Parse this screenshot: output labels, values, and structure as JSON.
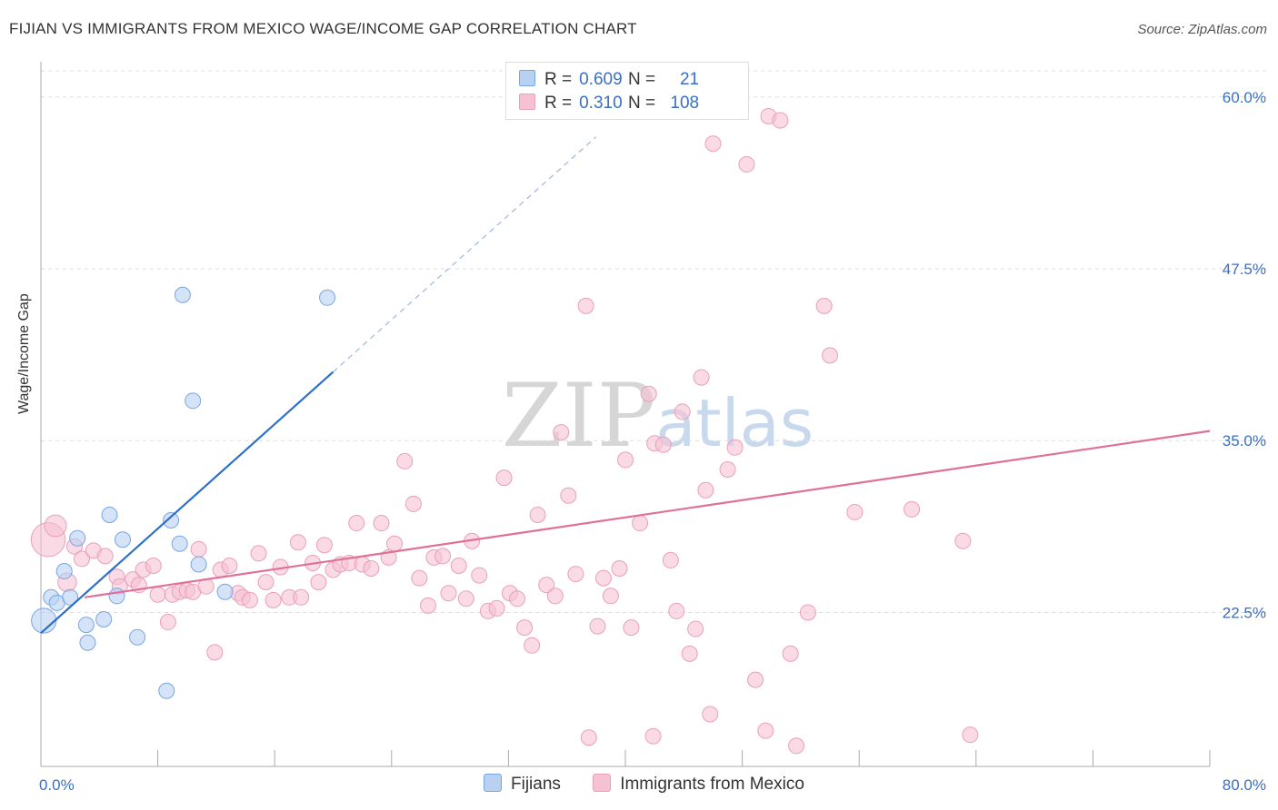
{
  "header": {
    "title": "FIJIAN VS IMMIGRANTS FROM MEXICO WAGE/INCOME GAP CORRELATION CHART",
    "source": "Source: ZipAtlas.com"
  },
  "watermark": {
    "zip": "ZIP",
    "atlas": "atlas"
  },
  "legend": {
    "rows": [
      {
        "r_label": "R =",
        "r_value": "0.609",
        "n_label": "N =",
        "n_value": "21"
      },
      {
        "r_label": "R =",
        "r_value": "0.310",
        "n_label": "N =",
        "n_value": "108"
      }
    ],
    "items": [
      "Fijians",
      "Immigrants from Mexico"
    ]
  },
  "colors": {
    "fijian_fill": "#b8d1f3",
    "fijian_stroke": "#7aa6df",
    "fijian_line": "#2b6fcc",
    "mexico_fill": "#f6c2d3",
    "mexico_stroke": "#e9a0b9",
    "mexico_line": "#e0709a",
    "grid": "#dddddd",
    "tick_label": "#3a6fc4"
  },
  "chart_data": {
    "type": "scatter",
    "title": "FIJIAN VS IMMIGRANTS FROM MEXICO WAGE/INCOME GAP CORRELATION CHART",
    "xlabel": "",
    "ylabel": "Wage/Income Gap",
    "xlim": [
      0,
      80
    ],
    "ylim": [
      11.3,
      61.9
    ],
    "x_tick_labels": [
      "0.0%",
      "80.0%"
    ],
    "y_ticks": [
      22.5,
      35.0,
      47.5,
      60.0
    ],
    "y_tick_labels": [
      "22.5%",
      "35.0%",
      "47.5%",
      "60.0%"
    ],
    "series": [
      {
        "name": "Fijians",
        "R": 0.609,
        "N": 21,
        "trend": {
          "x0": 0.0,
          "y0": 21.0,
          "x1": 20.0,
          "y1": 40.0,
          "dash_x1": 38.0,
          "dash_y1": 57.1
        },
        "points": [
          [
            0.2,
            21.9,
            16
          ],
          [
            0.7,
            23.6,
            10
          ],
          [
            1.1,
            23.2,
            10
          ],
          [
            1.6,
            25.5,
            10
          ],
          [
            2.5,
            27.9,
            10
          ],
          [
            2.0,
            23.6,
            10
          ],
          [
            3.1,
            21.6,
            10
          ],
          [
            3.2,
            20.3,
            10
          ],
          [
            4.3,
            22.0,
            10
          ],
          [
            4.7,
            29.6,
            10
          ],
          [
            5.2,
            23.7,
            10
          ],
          [
            5.6,
            27.8,
            10
          ],
          [
            6.6,
            20.7,
            10
          ],
          [
            8.6,
            16.8,
            10
          ],
          [
            8.9,
            29.2,
            10
          ],
          [
            9.5,
            27.5,
            10
          ],
          [
            9.7,
            45.6,
            10
          ],
          [
            10.4,
            37.9,
            10
          ],
          [
            10.8,
            26.0,
            10
          ],
          [
            12.6,
            24.0,
            10
          ],
          [
            19.6,
            45.4,
            10
          ]
        ]
      },
      {
        "name": "Immigrants from Mexico",
        "R": 0.31,
        "N": 108,
        "trend": {
          "x0": 3.0,
          "y0": 23.6,
          "x1": 80.0,
          "y1": 35.7
        },
        "points": [
          [
            0.5,
            27.8,
            22
          ],
          [
            1.0,
            28.8,
            14
          ],
          [
            1.8,
            24.7,
            12
          ],
          [
            2.3,
            27.3,
            10
          ],
          [
            2.8,
            26.4,
            10
          ],
          [
            3.6,
            27.0,
            10
          ],
          [
            4.4,
            26.6,
            10
          ],
          [
            5.2,
            25.1,
            10
          ],
          [
            5.4,
            24.4,
            10
          ],
          [
            6.3,
            24.9,
            10
          ],
          [
            6.7,
            24.5,
            10
          ],
          [
            7.0,
            25.6,
            10
          ],
          [
            7.7,
            25.9,
            10
          ],
          [
            8.0,
            23.8,
            10
          ],
          [
            8.7,
            21.8,
            10
          ],
          [
            9.0,
            23.8,
            10
          ],
          [
            9.5,
            24.0,
            10
          ],
          [
            10.0,
            24.1,
            10
          ],
          [
            10.4,
            24.0,
            10
          ],
          [
            10.8,
            27.1,
            10
          ],
          [
            11.3,
            24.4,
            10
          ],
          [
            11.9,
            19.6,
            10
          ],
          [
            12.3,
            25.6,
            10
          ],
          [
            12.9,
            25.9,
            10
          ],
          [
            13.5,
            23.9,
            10
          ],
          [
            13.8,
            23.6,
            10
          ],
          [
            14.3,
            23.4,
            10
          ],
          [
            14.9,
            26.8,
            10
          ],
          [
            15.4,
            24.7,
            10
          ],
          [
            15.9,
            23.4,
            10
          ],
          [
            16.4,
            25.8,
            10
          ],
          [
            17.0,
            23.6,
            10
          ],
          [
            17.6,
            27.6,
            10
          ],
          [
            17.8,
            23.6,
            10
          ],
          [
            18.6,
            26.1,
            10
          ],
          [
            19.0,
            24.7,
            10
          ],
          [
            19.4,
            27.4,
            10
          ],
          [
            20.0,
            25.6,
            10
          ],
          [
            20.5,
            26.0,
            10
          ],
          [
            21.1,
            26.1,
            10
          ],
          [
            21.6,
            29.0,
            10
          ],
          [
            22.0,
            26.0,
            10
          ],
          [
            22.6,
            25.7,
            10
          ],
          [
            23.3,
            29.0,
            10
          ],
          [
            23.8,
            26.5,
            10
          ],
          [
            24.2,
            27.5,
            10
          ],
          [
            24.9,
            33.5,
            10
          ],
          [
            25.5,
            30.4,
            10
          ],
          [
            25.9,
            25.0,
            10
          ],
          [
            26.5,
            23.0,
            10
          ],
          [
            26.9,
            26.5,
            10
          ],
          [
            27.5,
            26.6,
            10
          ],
          [
            27.9,
            23.9,
            10
          ],
          [
            28.6,
            25.9,
            10
          ],
          [
            29.1,
            23.5,
            10
          ],
          [
            29.5,
            27.7,
            10
          ],
          [
            30.0,
            25.2,
            10
          ],
          [
            30.6,
            22.6,
            10
          ],
          [
            31.2,
            22.8,
            10
          ],
          [
            31.7,
            32.3,
            10
          ],
          [
            32.1,
            23.9,
            10
          ],
          [
            32.6,
            23.5,
            10
          ],
          [
            33.1,
            21.4,
            10
          ],
          [
            33.6,
            20.1,
            10
          ],
          [
            34.0,
            29.6,
            10
          ],
          [
            34.6,
            24.5,
            10
          ],
          [
            35.2,
            23.7,
            10
          ],
          [
            35.6,
            35.6,
            10
          ],
          [
            36.1,
            31.0,
            10
          ],
          [
            36.6,
            25.3,
            10
          ],
          [
            37.3,
            44.8,
            10
          ],
          [
            37.5,
            13.4,
            10
          ],
          [
            38.1,
            21.5,
            10
          ],
          [
            38.5,
            25.0,
            10
          ],
          [
            39.0,
            23.7,
            10
          ],
          [
            39.6,
            25.7,
            10
          ],
          [
            40.0,
            33.6,
            10
          ],
          [
            40.4,
            21.4,
            10
          ],
          [
            41.0,
            29.0,
            10
          ],
          [
            41.6,
            38.4,
            10
          ],
          [
            42.0,
            34.8,
            10
          ],
          [
            42.6,
            34.7,
            10
          ],
          [
            43.1,
            26.3,
            10
          ],
          [
            43.5,
            22.6,
            10
          ],
          [
            43.9,
            37.1,
            10
          ],
          [
            44.4,
            19.5,
            10
          ],
          [
            44.8,
            21.3,
            10
          ],
          [
            45.2,
            39.6,
            10
          ],
          [
            45.5,
            31.4,
            10
          ],
          [
            46.0,
            56.6,
            10
          ],
          [
            47.0,
            32.9,
            10
          ],
          [
            47.5,
            34.5,
            10
          ],
          [
            48.3,
            55.1,
            10
          ],
          [
            48.9,
            17.6,
            10
          ],
          [
            49.6,
            13.9,
            10
          ],
          [
            49.8,
            58.6,
            10
          ],
          [
            50.6,
            58.3,
            10
          ],
          [
            51.3,
            19.5,
            10
          ],
          [
            51.7,
            12.8,
            10
          ],
          [
            52.5,
            22.5,
            10
          ],
          [
            53.6,
            44.8,
            10
          ],
          [
            54.0,
            41.2,
            10
          ],
          [
            55.7,
            29.8,
            10
          ],
          [
            59.6,
            30.0,
            10
          ],
          [
            63.1,
            27.7,
            10
          ],
          [
            63.6,
            13.6,
            10
          ],
          [
            41.9,
            13.5,
            10
          ],
          [
            45.8,
            15.1,
            10
          ]
        ]
      }
    ]
  }
}
